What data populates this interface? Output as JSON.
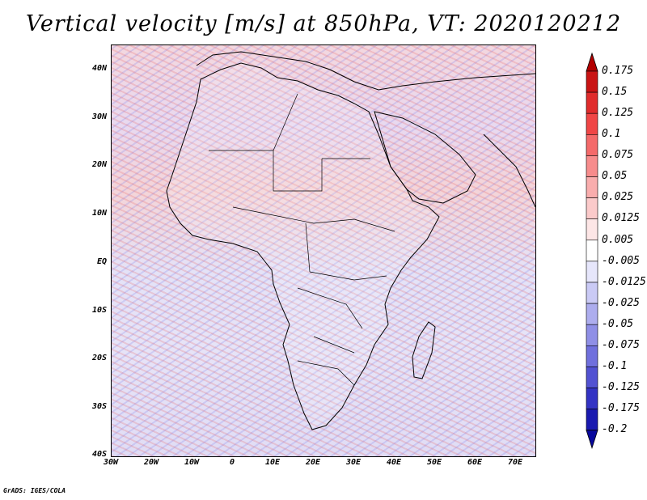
{
  "title": "Vertical velocity [m/s] at 850hPa, VT: 2020120212",
  "footer": "GrADS: IGES/COLA",
  "map": {
    "lon_range": [
      -30,
      75
    ],
    "lat_range": [
      -40,
      45
    ],
    "lat_labels": [
      "40N",
      "30N",
      "20N",
      "10N",
      "EQ",
      "10S",
      "20S",
      "30S",
      "40S"
    ],
    "lon_labels": [
      "30W",
      "20W",
      "10W",
      "0",
      "10E",
      "20E",
      "30E",
      "40E",
      "50E",
      "60E",
      "70E"
    ]
  },
  "colorbar": {
    "levels": [
      "0.175",
      "0.15",
      "0.125",
      "0.1",
      "0.075",
      "0.05",
      "0.025",
      "0.0125",
      "0.005",
      "-0.005",
      "-0.0125",
      "-0.025",
      "-0.05",
      "-0.075",
      "-0.1",
      "-0.125",
      "-0.175",
      "-0.2"
    ],
    "colors": [
      "#b30000",
      "#c91414",
      "#e02c2c",
      "#f04646",
      "#f46a6a",
      "#f78c8c",
      "#f9adad",
      "#fbcaca",
      "#fde6e6",
      "#ffffff",
      "#e6e6fb",
      "#cacaf5",
      "#adadee",
      "#8f8fe6",
      "#7070dd",
      "#5252d2",
      "#3333c4",
      "#1a1ab0",
      "#08089c"
    ]
  }
}
